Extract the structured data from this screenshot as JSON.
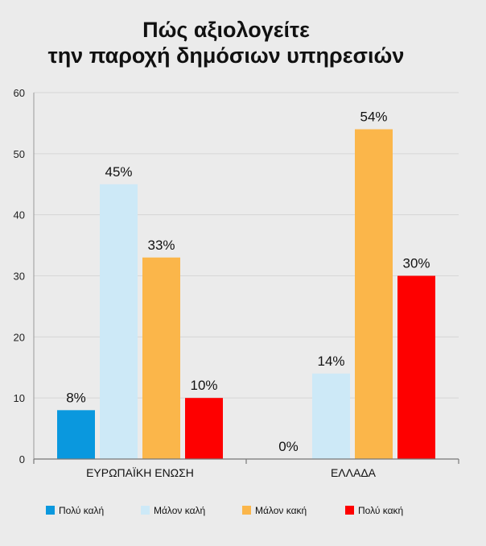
{
  "chart_data": {
    "type": "bar",
    "title_lines": [
      "Πώς αξιολογείτε",
      "την παροχή δημόσιων υπηρεσιών"
    ],
    "categories": [
      "ΕΥΡΩΠΑΪΚΗ ΕΝΩΣΗ",
      "ΕΛΛΑΔΑ"
    ],
    "series": [
      {
        "name": "Πολύ καλή",
        "values": [
          8,
          0
        ],
        "labels": [
          "8%",
          "0%"
        ],
        "color": "#0a98de"
      },
      {
        "name": "Μάλον καλή",
        "values": [
          45,
          14
        ],
        "labels": [
          "45%",
          "14%"
        ],
        "color": "#cde9f7"
      },
      {
        "name": "Μάλον κακή",
        "values": [
          33,
          54
        ],
        "labels": [
          "33%",
          "54%"
        ],
        "color": "#fbb64a"
      },
      {
        "name": "Πολύ κακή",
        "values": [
          10,
          30
        ],
        "labels": [
          "10%",
          "30%"
        ],
        "color": "#fe0000"
      }
    ],
    "ylim": [
      0,
      60
    ],
    "yticks": [
      "0",
      "10",
      "20",
      "30",
      "40",
      "50",
      "60"
    ],
    "grid": true,
    "legend_position": "bottom"
  }
}
